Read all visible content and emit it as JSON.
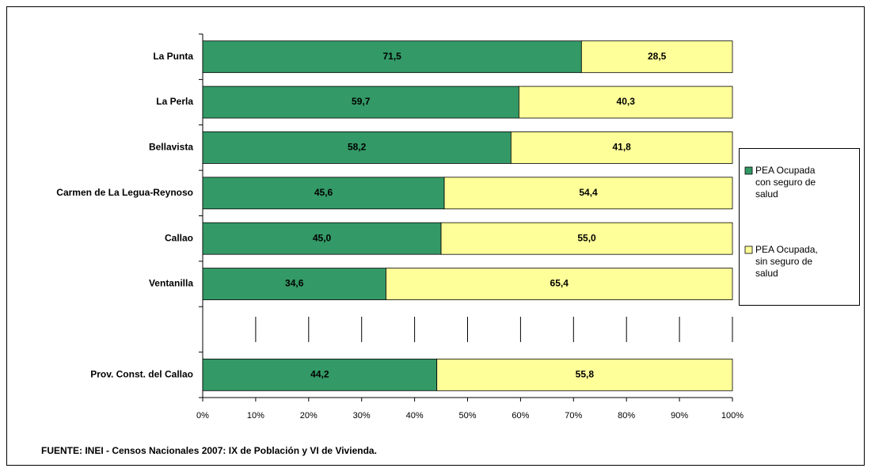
{
  "chart_data": {
    "type": "stacked_barh",
    "categories": [
      "La Punta",
      "La Perla",
      "Bellavista",
      "Carmen de La Legua-Reynoso",
      "Callao",
      "Ventanilla",
      null,
      "Prov. Const. del Callao"
    ],
    "series": [
      {
        "name": "PEA Ocupada con seguro de salud",
        "color": "#339966",
        "values": [
          71.5,
          59.7,
          58.2,
          45.6,
          45.0,
          34.6,
          null,
          44.2
        ],
        "value_labels": [
          "71,5",
          "59,7",
          "58,2",
          "45,6",
          "45,0",
          "34,6",
          null,
          "44,2"
        ]
      },
      {
        "name": "PEA Ocupada, sin seguro de salud",
        "color": "#ffff99",
        "values": [
          28.5,
          40.3,
          41.8,
          54.4,
          55.0,
          65.4,
          null,
          55.8
        ],
        "value_labels": [
          "28,5",
          "40,3",
          "41,8",
          "54,4",
          "55,0",
          "65,4",
          null,
          "55,8"
        ]
      }
    ],
    "xlim": [
      0,
      100
    ],
    "xticks": [
      {
        "value": 0,
        "label": "0%"
      },
      {
        "value": 10,
        "label": "10%"
      },
      {
        "value": 20,
        "label": "20%"
      },
      {
        "value": 30,
        "label": "30%"
      },
      {
        "value": 40,
        "label": "40%"
      },
      {
        "value": 50,
        "label": "50%"
      },
      {
        "value": 60,
        "label": "60%"
      },
      {
        "value": 70,
        "label": "70%"
      },
      {
        "value": 80,
        "label": "80%"
      },
      {
        "value": 90,
        "label": "90%"
      },
      {
        "value": 100,
        "label": "100%"
      }
    ],
    "legend": "right",
    "source": "FUENTE: INEI - Censos Nacionales 2007: IX de Población y VI de Vivienda."
  }
}
